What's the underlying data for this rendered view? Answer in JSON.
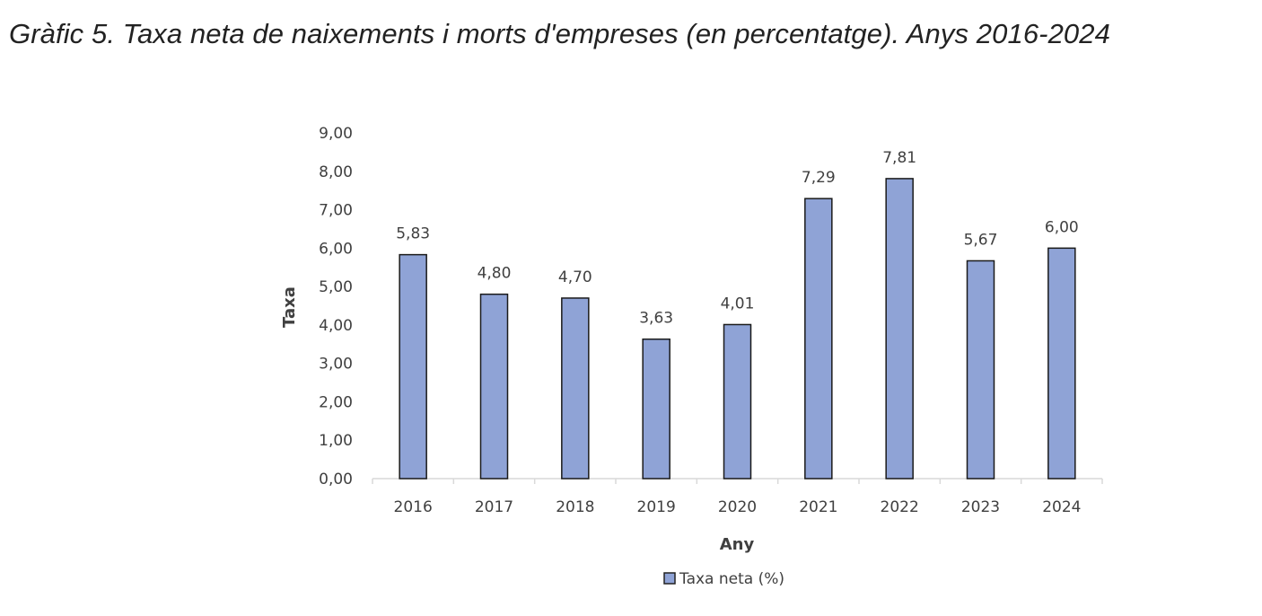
{
  "chart_data": {
    "type": "bar",
    "title": "Gràfic 5. Taxa neta de naixements i morts d'empreses (en percentatge). Anys 2016-2024",
    "categories": [
      "2016",
      "2017",
      "2018",
      "2019",
      "2020",
      "2021",
      "2022",
      "2023",
      "2024"
    ],
    "series": [
      {
        "name": "Taxa neta (%)",
        "values": [
          5.83,
          4.8,
          4.7,
          3.63,
          4.01,
          7.29,
          7.81,
          5.67,
          6.0
        ],
        "labels": [
          "5,83",
          "4,80",
          "4,70",
          "3,63",
          "4,01",
          "7,29",
          "7,81",
          "5,67",
          "6,00"
        ],
        "color": "#8FA3D6"
      }
    ],
    "xlabel": "Any",
    "ylabel": "Taxa",
    "ylim": [
      0,
      9
    ],
    "yticks": [
      "0,00",
      "1,00",
      "2,00",
      "3,00",
      "4,00",
      "5,00",
      "6,00",
      "7,00",
      "8,00",
      "9,00"
    ],
    "grid": false,
    "legend": "bottom-center"
  }
}
